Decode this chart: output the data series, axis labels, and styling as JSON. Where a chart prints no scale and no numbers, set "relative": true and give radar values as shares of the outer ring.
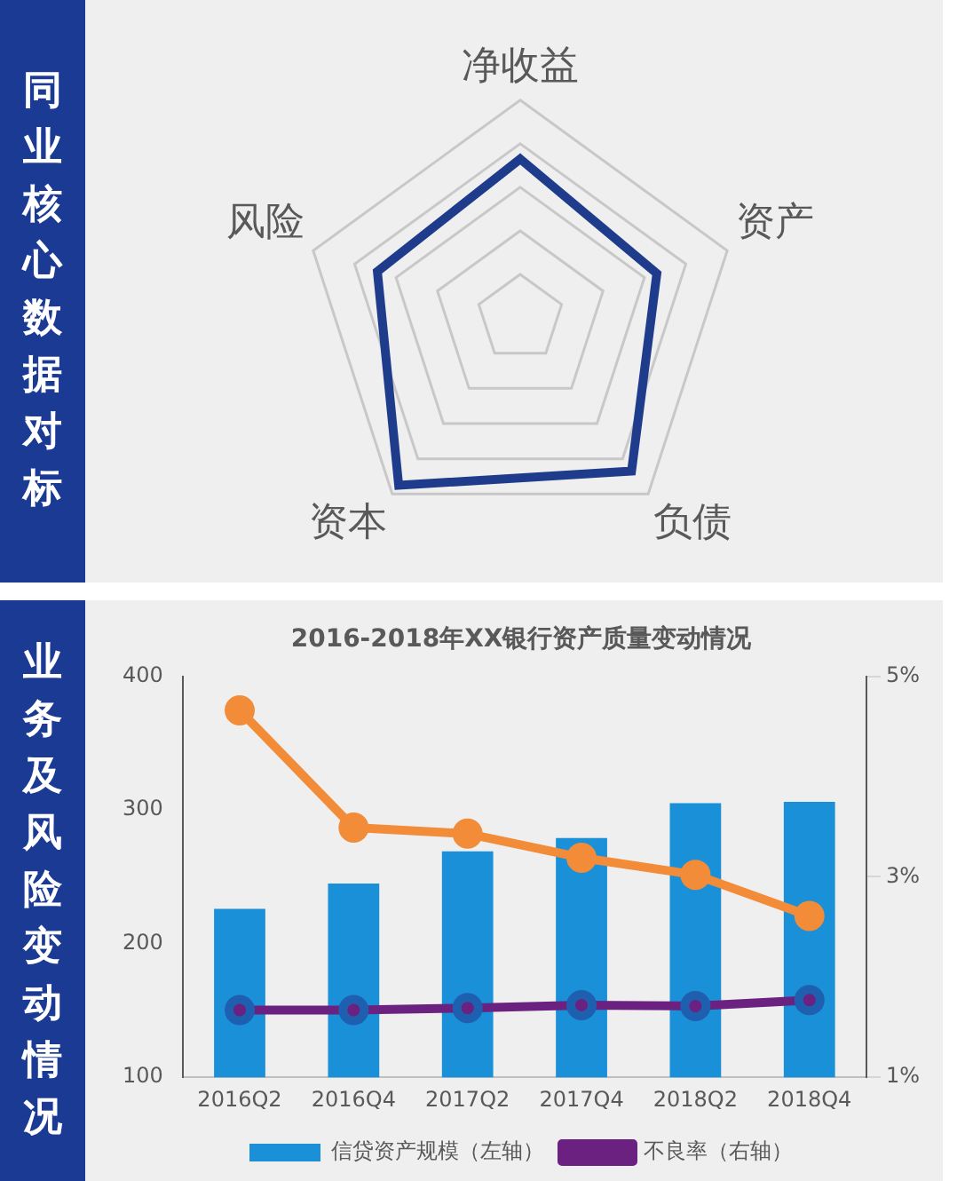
{
  "chart_data": [
    {
      "type": "radar",
      "title": "同业核心数据对标",
      "categories": [
        "净收益",
        "资产",
        "负债",
        "资本",
        "风险"
      ],
      "relative": true,
      "grid": true,
      "legend": false,
      "series": [
        {
          "color": "#1f3c8c",
          "values": [
            0.73,
            0.66,
            0.87,
            0.95,
            0.69
          ]
        }
      ]
    },
    {
      "type": "bar",
      "title": "2016-2018年XX银行资产质量变动情况",
      "subtitle": "业务及风险变动情况",
      "categories": [
        "2016Q2",
        "2016Q4",
        "2017Q2",
        "2017Q4",
        "2018Q2",
        "2018Q4"
      ],
      "ylim": [
        100,
        400
      ],
      "yticks": [
        100,
        200,
        300,
        400
      ],
      "y2lim": [
        1,
        5
      ],
      "y2ticks": [
        {
          "value": 1,
          "label": "1%"
        },
        {
          "value": 3,
          "label": "3%"
        },
        {
          "value": 5,
          "label": "5%"
        }
      ],
      "grid": false,
      "legend": "bottom",
      "marker": "circle",
      "series": [
        {
          "type": "bar",
          "name": "信贷资产规模（左轴）",
          "color": "#1a90d9",
          "values": [
            226,
            245,
            269,
            279,
            305,
            306
          ]
        },
        {
          "type": "line",
          "axis": "y2",
          "color": "#f28c38",
          "values": [
            4.66,
            3.49,
            3.43,
            3.19,
            3.02,
            2.61
          ]
        },
        {
          "type": "line",
          "axis": "y2",
          "name": "不良率（右轴）",
          "color": "#6b2180",
          "values": [
            1.67,
            1.67,
            1.69,
            1.72,
            1.71,
            1.77
          ]
        }
      ]
    }
  ]
}
